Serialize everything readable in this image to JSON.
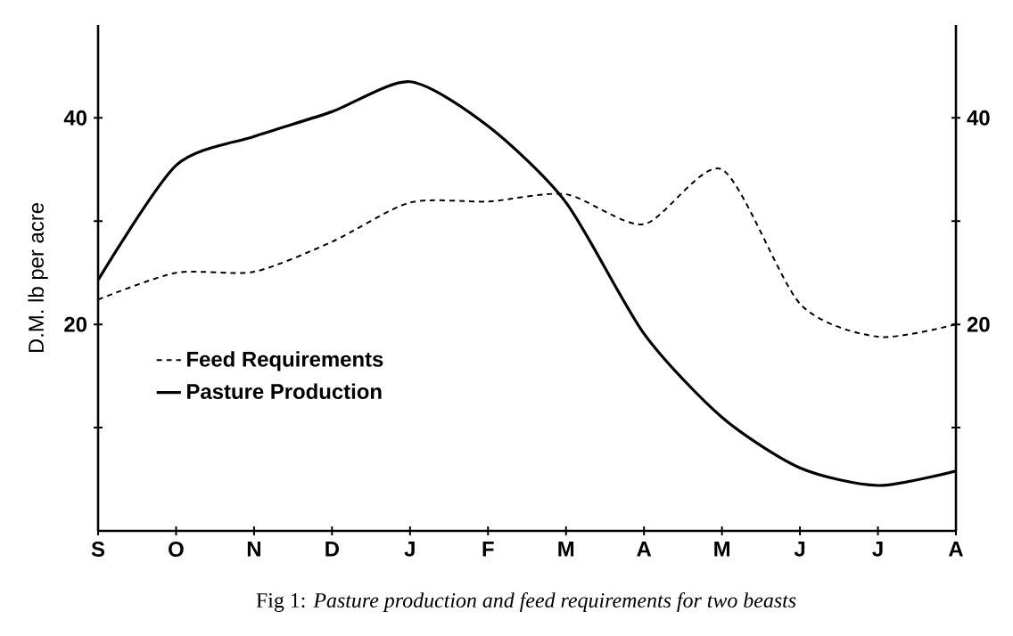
{
  "chart_data": {
    "type": "line",
    "title": "Fig 1: *Pasture production and feed requirements for two beasts*",
    "ylabel": "D.M. lb per acre",
    "categories": [
      "S",
      "O",
      "N",
      "D",
      "J",
      "F",
      "M",
      "A",
      "M",
      "J",
      "J",
      "A"
    ],
    "ylim": [
      0,
      49
    ],
    "yticks": [
      {
        "value": 10,
        "label": null
      },
      {
        "value": 20,
        "label": "20"
      },
      {
        "value": 30,
        "label": null
      },
      {
        "value": 40,
        "label": "40"
      }
    ],
    "y2lim": [
      0,
      49
    ],
    "y2ticks": [
      {
        "value": 10,
        "label": null
      },
      {
        "value": 20,
        "label": "20"
      },
      {
        "value": 30,
        "label": null
      },
      {
        "value": 40,
        "label": "40"
      }
    ],
    "legend": "left",
    "series": [
      {
        "name": "Feed Requirements",
        "color": "#000000",
        "line_style": "dashed",
        "values": [
          22.4,
          25.0,
          25.1,
          28.0,
          31.8,
          31.9,
          32.6,
          29.7,
          35.0,
          22.0,
          18.8,
          20.0
        ]
      },
      {
        "name": "Pasture Production",
        "color": "#000000",
        "line_style": "solid",
        "values": [
          24.3,
          35.4,
          38.2,
          40.6,
          43.5,
          39.2,
          31.8,
          19.1,
          11.0,
          6.1,
          4.4,
          5.8
        ]
      }
    ]
  }
}
